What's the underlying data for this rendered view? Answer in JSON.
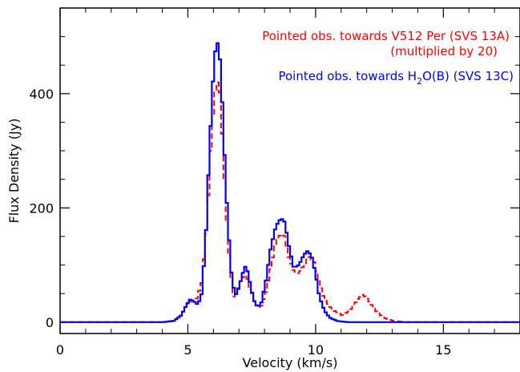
{
  "chart_data": {
    "type": "line",
    "title": "",
    "xlabel": "Velocity (km/s)",
    "ylabel": "Flux Density (Jy)",
    "xlim": [
      0,
      18
    ],
    "ylim": [
      -20,
      550
    ],
    "xticks": [
      0,
      5,
      10,
      15
    ],
    "yticks": [
      0,
      200,
      400
    ],
    "x_tick_labels": [
      "0",
      "5",
      "10",
      "15"
    ],
    "y_tick_labels": [
      "0",
      "200",
      "400"
    ],
    "grid": false,
    "legend_position": "top-right",
    "legend": [
      {
        "line1": "Pointed obs. towards V512 Per (SVS 13A)",
        "line2": "(multiplied by 20)"
      },
      {
        "pre": "Pointed obs. towards H",
        "sub": "2",
        "post": "O(B) (SVS 13C)"
      }
    ],
    "series": [
      {
        "color": "#ff0000",
        "style": "dashed",
        "x": [
          0,
          4.0,
          4.4,
          4.7,
          4.9,
          5.1,
          5.3,
          5.5,
          5.7,
          5.85,
          6.0,
          6.1,
          6.2,
          6.3,
          6.45,
          6.6,
          6.75,
          6.9,
          7.0,
          7.1,
          7.2,
          7.3,
          7.45,
          7.6,
          7.8,
          8.0,
          8.2,
          8.4,
          8.6,
          8.75,
          8.9,
          9.1,
          9.3,
          9.5,
          9.7,
          9.9,
          10.1,
          10.3,
          10.6,
          11.0,
          11.3,
          11.6,
          11.8,
          12.0,
          12.3,
          12.6,
          13.0,
          13.5,
          14.0,
          18.0
        ],
        "y": [
          0,
          0,
          2,
          12,
          30,
          38,
          40,
          70,
          170,
          300,
          400,
          422,
          410,
          330,
          200,
          95,
          45,
          55,
          70,
          78,
          82,
          75,
          50,
          30,
          25,
          50,
          95,
          140,
          155,
          150,
          115,
          90,
          85,
          100,
          115,
          105,
          70,
          40,
          22,
          12,
          20,
          40,
          48,
          40,
          20,
          8,
          2,
          0,
          0,
          0
        ]
      },
      {
        "color": "#0000ff",
        "style": "solid",
        "x": [
          0,
          4.0,
          4.4,
          4.7,
          4.9,
          5.05,
          5.2,
          5.35,
          5.5,
          5.65,
          5.8,
          5.95,
          6.05,
          6.15,
          6.25,
          6.35,
          6.5,
          6.65,
          6.8,
          6.95,
          7.1,
          7.2,
          7.3,
          7.45,
          7.6,
          7.8,
          8.0,
          8.2,
          8.4,
          8.6,
          8.75,
          8.9,
          9.1,
          9.3,
          9.5,
          9.65,
          9.8,
          9.95,
          10.1,
          10.3,
          10.5,
          10.8,
          11.2,
          18.0
        ],
        "y": [
          0,
          0,
          2,
          12,
          30,
          40,
          36,
          30,
          50,
          140,
          300,
          430,
          485,
          490,
          440,
          330,
          190,
          90,
          45,
          60,
          85,
          97,
          88,
          55,
          30,
          28,
          70,
          130,
          168,
          182,
          175,
          135,
          95,
          100,
          118,
          125,
          115,
          85,
          45,
          20,
          8,
          2,
          0,
          0
        ]
      }
    ]
  }
}
